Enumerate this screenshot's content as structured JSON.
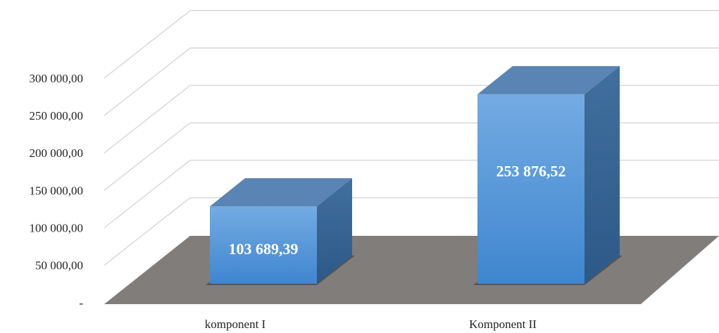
{
  "chart_data": {
    "type": "bar3d",
    "categories": [
      "komponent I",
      "Komponent II"
    ],
    "values": [
      103689.39,
      253876.52
    ],
    "value_labels": [
      "103 689,39",
      "253 876,52"
    ],
    "color": "#4a8fd6",
    "ylim": [
      0,
      300000
    ],
    "yticks": [
      {
        "value": 0,
        "label": "-"
      },
      {
        "value": 50000,
        "label": "50 000,00"
      },
      {
        "value": 100000,
        "label": "100 000,00"
      },
      {
        "value": 150000,
        "label": "150 000,00"
      },
      {
        "value": 200000,
        "label": "200 000,00"
      },
      {
        "value": 250000,
        "label": "250 000,00"
      },
      {
        "value": 300000,
        "label": "300 000,00"
      }
    ],
    "grid": true
  }
}
